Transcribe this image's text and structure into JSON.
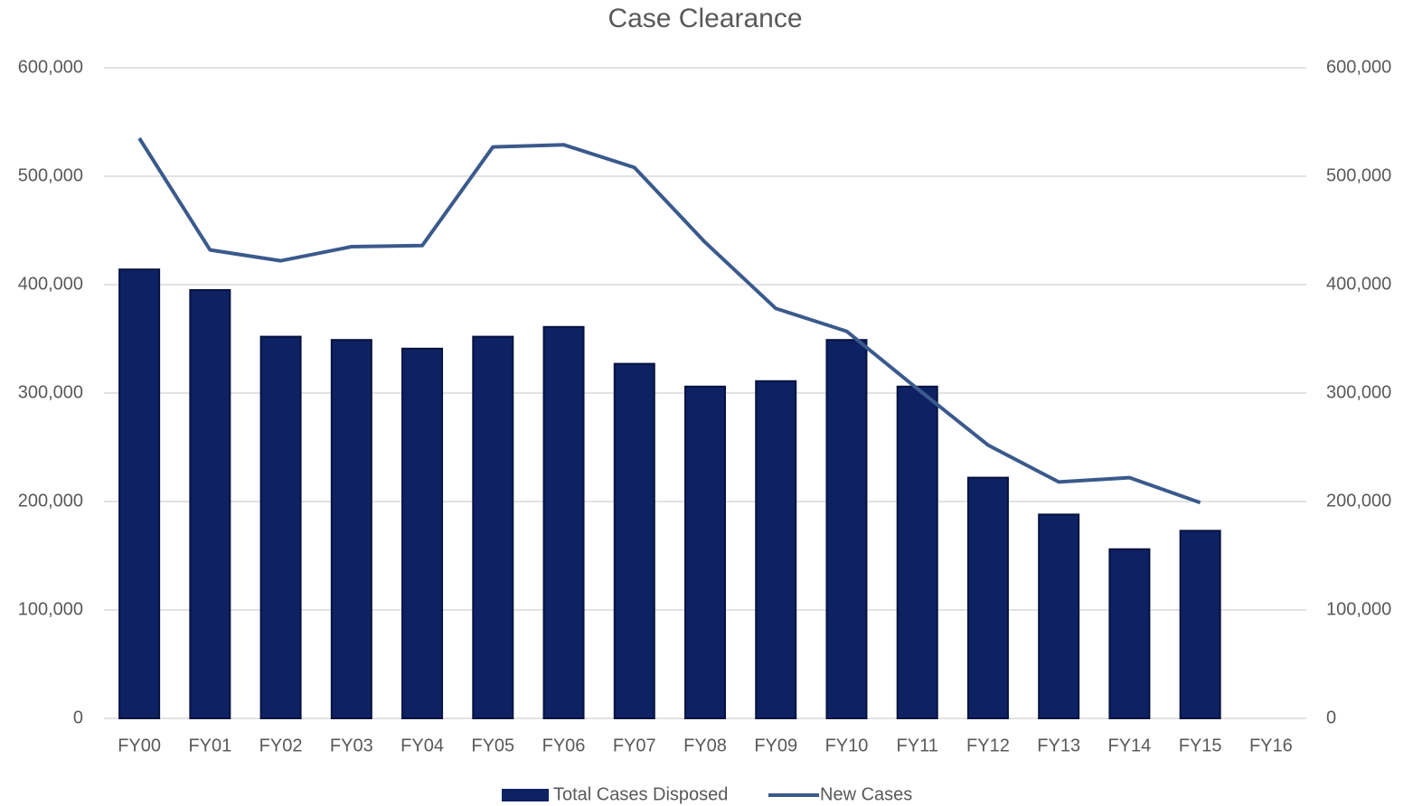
{
  "chart_data": {
    "type": "bar_line",
    "title": "Case Clearance",
    "categories": [
      "FY00",
      "FY01",
      "FY02",
      "FY03",
      "FY04",
      "FY05",
      "FY06",
      "FY07",
      "FY08",
      "FY09",
      "FY10",
      "FY11",
      "FY12",
      "FY13",
      "FY14",
      "FY15",
      "FY16"
    ],
    "series": [
      {
        "name": "Total Cases Disposed",
        "type": "bar",
        "color": "#0e2163",
        "values": [
          414000,
          395000,
          352000,
          349000,
          341000,
          352000,
          361000,
          327000,
          306000,
          311000,
          349000,
          306000,
          222000,
          188000,
          156000,
          173000,
          null
        ]
      },
      {
        "name": "New Cases",
        "type": "line",
        "axis": "y2",
        "color": "#3b5a8c",
        "values": [
          535000,
          432000,
          422000,
          435000,
          436000,
          527000,
          529000,
          508000,
          439000,
          378000,
          357000,
          304000,
          252000,
          218000,
          222000,
          199000,
          null
        ]
      }
    ],
    "ylim": [
      0,
      600000
    ],
    "yticks": [
      0,
      {
        "value": 100000,
        "label": "100,000"
      },
      {
        "value": 200000,
        "label": "200,000"
      },
      {
        "value": 300000,
        "label": "300,000"
      },
      {
        "value": 400000,
        "label": "400,000"
      },
      {
        "value": 500000,
        "label": "500,000"
      },
      {
        "value": 600000,
        "label": "600,000"
      }
    ],
    "y2lim": [
      0,
      600000
    ],
    "y2ticks": [
      0,
      {
        "value": 100000,
        "label": "100,000"
      },
      {
        "value": 200000,
        "label": "200,000"
      },
      {
        "value": 300000,
        "label": "300,000"
      },
      {
        "value": 400000,
        "label": "400,000"
      },
      {
        "value": 500000,
        "label": "500,000"
      },
      {
        "value": 600000,
        "label": "600,000"
      }
    ],
    "grid": true,
    "legend": "bottom"
  }
}
